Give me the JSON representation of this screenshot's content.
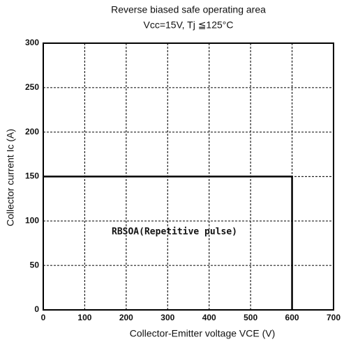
{
  "chart_data": {
    "type": "line",
    "title": "Reverse biased safe operating area",
    "subtitle": "Vcc=15V, Tj ≦125°C",
    "x_label": "Collector-Emitter voltage  VCE (V)",
    "y_label": "Collector current  Ic  (A)",
    "annotation": "RBSOA(Repetitive pulse)",
    "x": [
      0,
      600,
      600
    ],
    "series": [
      {
        "name": "RBSOA(Repetitive pulse)",
        "color": "#000000",
        "values": [
          150,
          150,
          0
        ]
      }
    ],
    "xlim": [
      0,
      700
    ],
    "xticks": [
      0,
      100,
      200,
      300,
      400,
      500,
      600,
      700
    ],
    "ylim": [
      0,
      300
    ],
    "yticks": [
      0,
      50,
      100,
      150,
      200,
      250,
      300
    ],
    "grid": true
  }
}
